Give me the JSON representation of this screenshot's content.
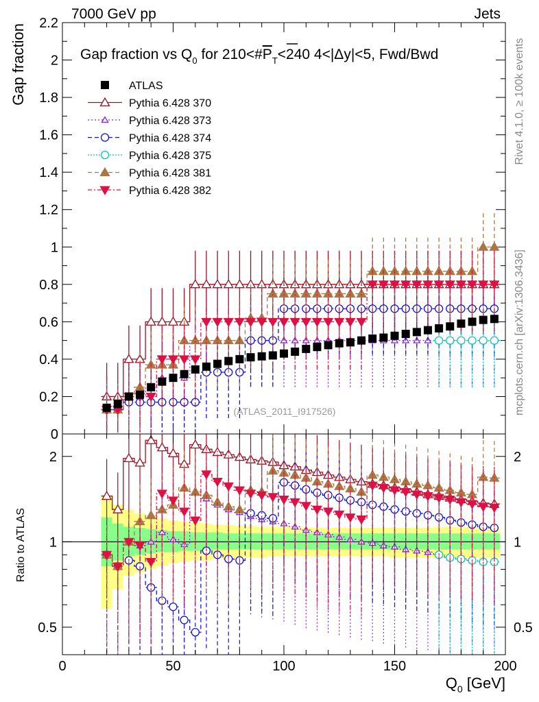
{
  "header": {
    "left": "7000 GeV pp",
    "right": "Jets"
  },
  "side_labels": {
    "rivet": "Rivet 4.1.0, ≥ 100k events",
    "mcplots": "mcplots.cern.ch [arXiv:1306.3436]"
  },
  "watermark": "(ATLAS_2011_I917526)",
  "colors": {
    "atlas": "#000000",
    "s370": "#991122",
    "s373": "#8822dd",
    "s374": "#1111dd",
    "s375": "#00ccbb",
    "s381": "#aa7744",
    "s382": "#dd1144",
    "band_yellow": "#ffff88",
    "band_green": "#88ff88"
  },
  "chart_data": [
    {
      "type": "scatter",
      "title": "Gap fraction vs Q_0 for 210<#P_T<240 4<|Δy|<5, Fwd/Bwd",
      "title_parts": {
        "main": "Gap fraction vs Q",
        "sub0": "0",
        "mid": " for 210<#",
        "pbar": "P",
        "subT": "T",
        "tail": "<240  4<|Δy|<5, Fwd/Bwd"
      },
      "ylabel": "Gap fraction",
      "xlim": [
        0,
        200
      ],
      "ylim": [
        0,
        2.2
      ],
      "yticks": [
        "0",
        "0.2",
        "0.4",
        "0.6",
        "0.8",
        "1",
        "1.2",
        "1.4",
        "1.6",
        "1.8",
        "2",
        "2.2"
      ],
      "x": [
        20,
        25,
        30,
        35,
        40,
        45,
        50,
        55,
        60,
        65,
        70,
        75,
        80,
        85,
        90,
        95,
        100,
        105,
        110,
        115,
        120,
        125,
        130,
        135,
        140,
        145,
        150,
        155,
        160,
        165,
        170,
        175,
        180,
        185,
        190,
        195
      ],
      "series": [
        {
          "key": "atlas",
          "name": "ATLAS",
          "values": [
            0.14,
            0.16,
            0.2,
            0.21,
            0.25,
            0.28,
            0.3,
            0.32,
            0.345,
            0.36,
            0.375,
            0.39,
            0.4,
            0.41,
            0.415,
            0.42,
            0.43,
            0.44,
            0.455,
            0.465,
            0.475,
            0.485,
            0.49,
            0.5,
            0.51,
            0.515,
            0.525,
            0.535,
            0.545,
            0.555,
            0.565,
            0.575,
            0.59,
            0.6,
            0.61,
            0.615
          ]
        },
        {
          "key": "s370",
          "name": "Pythia 6.428 370",
          "values": [
            0.2,
            0.2,
            0.4,
            0.4,
            0.6,
            0.6,
            0.6,
            0.6,
            0.8,
            0.8,
            0.8,
            0.8,
            0.8,
            0.8,
            0.8,
            0.8,
            0.8,
            0.8,
            0.8,
            0.8,
            0.8,
            0.8,
            0.8,
            0.8,
            0.8,
            0.8,
            0.8,
            0.8,
            0.8,
            0.8,
            0.8,
            0.8,
            0.8,
            0.8,
            0.8,
            0.8
          ]
        },
        {
          "key": "s373",
          "name": "Pythia 6.428 373",
          "values": [
            0.13,
            0.13,
            0.2,
            0.2,
            0.25,
            0.3,
            0.3,
            0.3,
            0.5,
            0.5,
            0.5,
            0.5,
            0.5,
            0.5,
            0.5,
            0.5,
            0.5,
            0.5,
            0.5,
            0.5,
            0.5,
            0.5,
            0.5,
            0.5,
            0.5,
            0.5,
            0.5,
            0.5,
            0.5,
            0.5,
            0.5,
            0.5,
            0.5,
            0.5,
            0.5,
            0.5
          ]
        },
        {
          "key": "s374",
          "name": "Pythia 6.428 374",
          "values": [
            0.13,
            0.13,
            0.17,
            0.17,
            0.17,
            0.17,
            0.17,
            0.17,
            0.17,
            0.33,
            0.33,
            0.33,
            0.33,
            0.5,
            0.5,
            0.5,
            0.67,
            0.67,
            0.67,
            0.67,
            0.67,
            0.67,
            0.67,
            0.67,
            0.67,
            0.67,
            0.67,
            0.67,
            0.67,
            0.67,
            0.67,
            0.67,
            0.67,
            0.67,
            0.67,
            0.67
          ]
        },
        {
          "key": "s375",
          "name": "Pythia 6.428 375",
          "values": [
            null,
            null,
            null,
            null,
            null,
            null,
            null,
            null,
            null,
            null,
            null,
            null,
            null,
            null,
            null,
            null,
            null,
            null,
            null,
            null,
            null,
            null,
            null,
            null,
            null,
            null,
            null,
            null,
            null,
            null,
            0.5,
            0.5,
            0.5,
            0.5,
            0.5,
            0.5
          ]
        },
        {
          "key": "s381",
          "name": "Pythia 6.428 381",
          "values": [
            0.13,
            0.13,
            0.2,
            0.25,
            0.37,
            0.37,
            0.37,
            0.5,
            0.5,
            0.5,
            0.5,
            0.5,
            0.5,
            0.62,
            0.62,
            0.75,
            0.75,
            0.75,
            0.75,
            0.75,
            0.75,
            0.75,
            0.75,
            0.75,
            0.87,
            0.87,
            0.87,
            0.87,
            0.87,
            0.87,
            0.87,
            0.87,
            0.87,
            0.87,
            1.0,
            1.0
          ]
        },
        {
          "key": "s382",
          "name": "Pythia 6.428 382",
          "values": [
            0.13,
            0.13,
            0.2,
            0.2,
            0.2,
            0.4,
            0.4,
            0.4,
            0.4,
            0.6,
            0.6,
            0.6,
            0.6,
            0.6,
            0.6,
            0.6,
            0.6,
            0.6,
            0.6,
            0.6,
            0.6,
            0.6,
            0.6,
            0.6,
            0.8,
            0.8,
            0.8,
            0.8,
            0.8,
            0.8,
            0.8,
            0.8,
            0.8,
            0.8,
            0.8,
            0.8
          ]
        }
      ]
    },
    {
      "type": "scatter",
      "title": "Ratio to ATLAS",
      "ylabel": "Ratio to ATLAS",
      "xlabel": "Q_0 [GeV]",
      "xlabel_parts": {
        "q": "Q",
        "sub": "0",
        "unit": " [GeV]"
      },
      "xlim": [
        0,
        200
      ],
      "ylim": [
        0.4,
        2.4
      ],
      "yscale": "log",
      "xticks": [
        "0",
        "50",
        "100",
        "150",
        "200"
      ],
      "yticks": [
        "0.5",
        "1",
        "2"
      ],
      "reference_line": 1,
      "x": [
        20,
        25,
        30,
        35,
        40,
        45,
        50,
        55,
        60,
        65,
        70,
        75,
        80,
        85,
        90,
        95,
        100,
        105,
        110,
        115,
        120,
        125,
        130,
        135,
        140,
        145,
        150,
        155,
        160,
        165,
        170,
        175,
        180,
        185,
        190,
        195
      ],
      "bands": {
        "yellow_lo": [
          0.58,
          0.68,
          0.76,
          0.78,
          0.8,
          0.82,
          0.84,
          0.85,
          0.86,
          0.86,
          0.87,
          0.87,
          0.88,
          0.88,
          0.88,
          0.89,
          0.89,
          0.89,
          0.89,
          0.89,
          0.89,
          0.89,
          0.89,
          0.89,
          0.89,
          0.89,
          0.88,
          0.88,
          0.88,
          0.88,
          0.88,
          0.88,
          0.88,
          0.88,
          0.88,
          0.88
        ],
        "yellow_hi": [
          1.45,
          1.35,
          1.3,
          1.26,
          1.23,
          1.21,
          1.19,
          1.18,
          1.17,
          1.16,
          1.15,
          1.15,
          1.14,
          1.14,
          1.13,
          1.13,
          1.13,
          1.13,
          1.12,
          1.12,
          1.12,
          1.12,
          1.12,
          1.12,
          1.12,
          1.12,
          1.12,
          1.12,
          1.12,
          1.12,
          1.13,
          1.13,
          1.13,
          1.13,
          1.13,
          1.13
        ],
        "green_lo": [
          0.82,
          0.86,
          0.89,
          0.9,
          0.91,
          0.92,
          0.92,
          0.93,
          0.93,
          0.93,
          0.94,
          0.94,
          0.94,
          0.94,
          0.94,
          0.94,
          0.94,
          0.94,
          0.94,
          0.94,
          0.94,
          0.94,
          0.94,
          0.94,
          0.94,
          0.94,
          0.94,
          0.94,
          0.94,
          0.94,
          0.94,
          0.94,
          0.94,
          0.94,
          0.94,
          0.94
        ],
        "green_hi": [
          1.22,
          1.16,
          1.13,
          1.12,
          1.11,
          1.1,
          1.09,
          1.09,
          1.08,
          1.08,
          1.08,
          1.07,
          1.07,
          1.07,
          1.07,
          1.07,
          1.07,
          1.07,
          1.07,
          1.07,
          1.07,
          1.07,
          1.07,
          1.07,
          1.07,
          1.07,
          1.07,
          1.07,
          1.07,
          1.07,
          1.07,
          1.07,
          1.07,
          1.07,
          1.07,
          1.07
        ]
      },
      "series": [
        {
          "key": "s370",
          "name": "Pythia 6.428 370",
          "values": [
            1.45,
            1.3,
            1.97,
            1.9,
            2.28,
            2.15,
            2.05,
            1.88,
            2.2,
            2.12,
            2.07,
            2.03,
            1.99,
            1.95,
            1.93,
            1.91,
            1.86,
            1.84,
            1.79,
            1.76,
            1.72,
            1.69,
            1.66,
            1.63,
            1.6,
            1.58,
            1.55,
            1.53,
            1.5,
            1.47,
            1.45,
            1.43,
            1.41,
            1.39,
            1.37,
            1.36
          ]
        },
        {
          "key": "s373",
          "name": "Pythia 6.428 373",
          "values": [
            0.9,
            0.82,
            1.0,
            0.97,
            1.0,
            1.08,
            1.02,
            0.98,
            1.5,
            1.42,
            1.35,
            1.3,
            1.27,
            1.23,
            1.2,
            1.18,
            1.16,
            1.13,
            1.1,
            1.08,
            1.06,
            1.04,
            1.02,
            1.0,
            0.99,
            0.97,
            0.96,
            0.94,
            0.93,
            0.92,
            0.9,
            0.88,
            0.87,
            0.86,
            0.85,
            0.85
          ]
        },
        {
          "key": "s374",
          "name": "Pythia 6.428 374",
          "values": [
            0.9,
            0.82,
            0.86,
            0.82,
            0.69,
            0.62,
            0.59,
            0.53,
            0.48,
            0.93,
            0.9,
            0.87,
            0.86,
            1.26,
            1.24,
            1.21,
            1.62,
            1.58,
            1.53,
            1.49,
            1.46,
            1.43,
            1.4,
            1.38,
            1.35,
            1.33,
            1.3,
            1.28,
            1.26,
            1.24,
            1.22,
            1.19,
            1.17,
            1.15,
            1.13,
            1.12
          ]
        },
        {
          "key": "s375",
          "name": "Pythia 6.428 375",
          "values": [
            null,
            null,
            null,
            null,
            null,
            null,
            null,
            null,
            null,
            null,
            null,
            null,
            null,
            null,
            null,
            null,
            null,
            null,
            null,
            null,
            null,
            null,
            null,
            null,
            null,
            null,
            null,
            null,
            null,
            null,
            0.9,
            0.88,
            0.87,
            0.86,
            0.85,
            0.85
          ]
        },
        {
          "key": "s381",
          "name": "Pythia 6.428 381",
          "values": [
            0.9,
            0.82,
            1.0,
            1.18,
            1.24,
            1.3,
            1.35,
            1.55,
            1.5,
            1.46,
            1.38,
            1.33,
            1.3,
            1.52,
            1.5,
            1.78,
            1.75,
            1.72,
            1.68,
            1.63,
            1.6,
            1.57,
            1.54,
            1.5,
            1.72,
            1.69,
            1.66,
            1.63,
            1.6,
            1.58,
            1.55,
            1.52,
            1.49,
            1.47,
            1.69,
            1.68
          ]
        },
        {
          "key": "s382",
          "name": "Pythia 6.428 382",
          "values": [
            0.9,
            0.82,
            1.0,
            0.97,
            0.85,
            1.48,
            1.4,
            1.28,
            1.19,
            1.73,
            1.63,
            1.57,
            1.52,
            1.48,
            1.46,
            1.44,
            1.41,
            1.38,
            1.34,
            1.3,
            1.28,
            1.25,
            1.22,
            1.2,
            1.58,
            1.55,
            1.52,
            1.5,
            1.47,
            1.45,
            1.43,
            1.41,
            1.38,
            1.36,
            1.33,
            1.32
          ]
        }
      ]
    }
  ]
}
